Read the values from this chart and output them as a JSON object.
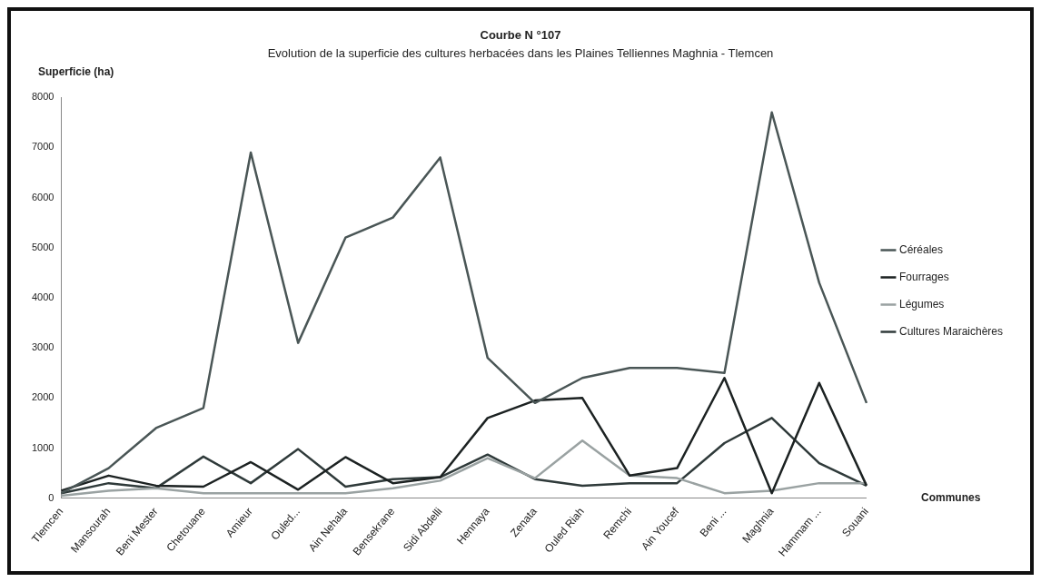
{
  "chart_data": {
    "type": "line",
    "title": "Courbe N °107",
    "subtitle": "Evolution de la superficie des cultures herbacées dans les Plaines Telliennes Maghnia - Tlemcen",
    "ylabel": "Superficie (ha)",
    "xlabel": "Communes",
    "categories": [
      "Tlemcen",
      "Mansourah",
      "Beni Mester",
      "Chetouane",
      "Amieur",
      "Ouled...",
      "Ain Nehala",
      "Bensekrane",
      "Sidi Abdelli",
      "Hennaya",
      "Zenata",
      "Ouled Riah",
      "Remchi",
      "Ain Youcef",
      "Beni ...",
      "Maghnia",
      "Hammam ...",
      "Souani"
    ],
    "series": [
      {
        "name": "Céréales",
        "color": "#4a5656",
        "values": [
          100,
          600,
          1400,
          1800,
          6900,
          3100,
          5200,
          5600,
          6800,
          2800,
          1900,
          2400,
          2600,
          2600,
          2500,
          7700,
          4300,
          1900
        ]
      },
      {
        "name": "Fourrages",
        "color": "#1c2222",
        "values": [
          150,
          450,
          250,
          230,
          720,
          170,
          820,
          300,
          420,
          1600,
          1950,
          2000,
          450,
          600,
          2400,
          100,
          2300,
          250
        ]
      },
      {
        "name": "Légumes",
        "color": "#9aa2a2",
        "values": [
          50,
          150,
          200,
          100,
          100,
          100,
          100,
          200,
          350,
          800,
          400,
          1150,
          450,
          400,
          100,
          150,
          300,
          300
        ]
      },
      {
        "name": "Cultures Maraichères",
        "color": "#2f3a3a",
        "values": [
          100,
          300,
          200,
          830,
          300,
          980,
          230,
          380,
          420,
          870,
          380,
          250,
          300,
          300,
          1100,
          1600,
          700,
          250
        ]
      }
    ],
    "ylim": [
      0,
      8000
    ],
    "yticks": [
      0,
      1000,
      2000,
      3000,
      4000,
      5000,
      6000,
      7000,
      8000
    ],
    "grid": false,
    "legend": "right",
    "marker": "none",
    "line_style": "solid"
  }
}
